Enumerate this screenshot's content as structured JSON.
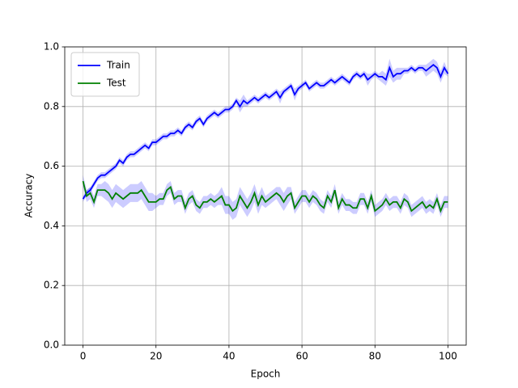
{
  "chart_data": {
    "type": "line",
    "xlabel": "Epoch",
    "ylabel": "Accuracy",
    "x": [
      0,
      1,
      2,
      3,
      4,
      5,
      6,
      7,
      8,
      9,
      10,
      11,
      12,
      13,
      14,
      15,
      16,
      17,
      18,
      19,
      20,
      21,
      22,
      23,
      24,
      25,
      26,
      27,
      28,
      29,
      30,
      31,
      32,
      33,
      34,
      35,
      36,
      37,
      38,
      39,
      40,
      41,
      42,
      43,
      44,
      45,
      46,
      47,
      48,
      49,
      50,
      51,
      52,
      53,
      54,
      55,
      56,
      57,
      58,
      59,
      60,
      61,
      62,
      63,
      64,
      65,
      66,
      67,
      68,
      69,
      70,
      71,
      72,
      73,
      74,
      75,
      76,
      77,
      78,
      79,
      80,
      81,
      82,
      83,
      84,
      85,
      86,
      87,
      88,
      89,
      90,
      91,
      92,
      93,
      94,
      95,
      96,
      97,
      98,
      99,
      100
    ],
    "series": [
      {
        "name": "Train",
        "color": "#0000ff",
        "values": [
          0.49,
          0.51,
          0.52,
          0.54,
          0.56,
          0.57,
          0.57,
          0.58,
          0.59,
          0.6,
          0.62,
          0.61,
          0.63,
          0.64,
          0.64,
          0.65,
          0.66,
          0.67,
          0.66,
          0.68,
          0.68,
          0.69,
          0.7,
          0.7,
          0.71,
          0.71,
          0.72,
          0.71,
          0.73,
          0.74,
          0.73,
          0.75,
          0.76,
          0.74,
          0.76,
          0.77,
          0.78,
          0.77,
          0.78,
          0.79,
          0.79,
          0.8,
          0.82,
          0.8,
          0.82,
          0.81,
          0.82,
          0.83,
          0.82,
          0.83,
          0.84,
          0.83,
          0.84,
          0.85,
          0.83,
          0.85,
          0.86,
          0.87,
          0.84,
          0.86,
          0.87,
          0.88,
          0.86,
          0.87,
          0.88,
          0.87,
          0.87,
          0.88,
          0.89,
          0.88,
          0.89,
          0.9,
          0.89,
          0.88,
          0.9,
          0.91,
          0.9,
          0.91,
          0.89,
          0.9,
          0.91,
          0.9,
          0.9,
          0.89,
          0.93,
          0.9,
          0.91,
          0.91,
          0.92,
          0.92,
          0.93,
          0.92,
          0.93,
          0.93,
          0.92,
          0.93,
          0.94,
          0.93,
          0.9,
          0.93,
          0.91
        ],
        "errors": [
          0.01,
          0.01,
          0.01,
          0.01,
          0.01,
          0.01,
          0.01,
          0.01,
          0.01,
          0.01,
          0.01,
          0.01,
          0.01,
          0.01,
          0.01,
          0.01,
          0.01,
          0.01,
          0.01,
          0.01,
          0.01,
          0.01,
          0.01,
          0.01,
          0.01,
          0.01,
          0.01,
          0.01,
          0.01,
          0.01,
          0.01,
          0.01,
          0.01,
          0.01,
          0.01,
          0.01,
          0.01,
          0.01,
          0.01,
          0.01,
          0.01,
          0.01,
          0.01,
          0.02,
          0.02,
          0.01,
          0.01,
          0.01,
          0.01,
          0.01,
          0.01,
          0.01,
          0.01,
          0.01,
          0.02,
          0.01,
          0.01,
          0.01,
          0.02,
          0.01,
          0.01,
          0.01,
          0.01,
          0.01,
          0.01,
          0.01,
          0.01,
          0.01,
          0.01,
          0.01,
          0.01,
          0.01,
          0.01,
          0.01,
          0.01,
          0.01,
          0.01,
          0.01,
          0.02,
          0.01,
          0.01,
          0.01,
          0.02,
          0.02,
          0.03,
          0.02,
          0.02,
          0.02,
          0.01,
          0.01,
          0.01,
          0.01,
          0.01,
          0.01,
          0.02,
          0.02,
          0.02,
          0.02,
          0.02,
          0.02,
          0.01
        ]
      },
      {
        "name": "Test",
        "color": "#008000",
        "values": [
          0.55,
          0.5,
          0.51,
          0.48,
          0.52,
          0.52,
          0.52,
          0.51,
          0.49,
          0.51,
          0.5,
          0.49,
          0.5,
          0.51,
          0.51,
          0.51,
          0.52,
          0.5,
          0.48,
          0.48,
          0.48,
          0.49,
          0.49,
          0.52,
          0.53,
          0.49,
          0.5,
          0.5,
          0.46,
          0.49,
          0.5,
          0.47,
          0.46,
          0.48,
          0.48,
          0.49,
          0.48,
          0.49,
          0.5,
          0.47,
          0.47,
          0.45,
          0.46,
          0.5,
          0.48,
          0.46,
          0.48,
          0.51,
          0.47,
          0.5,
          0.48,
          0.49,
          0.5,
          0.51,
          0.5,
          0.48,
          0.5,
          0.51,
          0.46,
          0.48,
          0.5,
          0.5,
          0.48,
          0.5,
          0.49,
          0.47,
          0.46,
          0.5,
          0.48,
          0.52,
          0.46,
          0.49,
          0.47,
          0.47,
          0.46,
          0.46,
          0.49,
          0.49,
          0.46,
          0.5,
          0.45,
          0.46,
          0.47,
          0.49,
          0.47,
          0.48,
          0.48,
          0.46,
          0.49,
          0.48,
          0.45,
          0.46,
          0.47,
          0.48,
          0.46,
          0.47,
          0.46,
          0.49,
          0.45,
          0.48,
          0.48
        ],
        "errors": [
          0.02,
          0.02,
          0.02,
          0.02,
          0.02,
          0.02,
          0.03,
          0.03,
          0.03,
          0.03,
          0.03,
          0.03,
          0.03,
          0.03,
          0.03,
          0.03,
          0.03,
          0.03,
          0.03,
          0.03,
          0.02,
          0.02,
          0.02,
          0.02,
          0.02,
          0.02,
          0.02,
          0.02,
          0.02,
          0.02,
          0.02,
          0.02,
          0.02,
          0.02,
          0.02,
          0.02,
          0.02,
          0.02,
          0.03,
          0.03,
          0.03,
          0.03,
          0.03,
          0.03,
          0.03,
          0.03,
          0.03,
          0.03,
          0.03,
          0.03,
          0.02,
          0.02,
          0.02,
          0.02,
          0.03,
          0.03,
          0.03,
          0.02,
          0.02,
          0.02,
          0.02,
          0.02,
          0.02,
          0.02,
          0.02,
          0.02,
          0.02,
          0.02,
          0.02,
          0.02,
          0.02,
          0.02,
          0.02,
          0.02,
          0.02,
          0.02,
          0.02,
          0.02,
          0.02,
          0.02,
          0.02,
          0.02,
          0.02,
          0.02,
          0.02,
          0.02,
          0.02,
          0.02,
          0.02,
          0.02,
          0.02,
          0.02,
          0.02,
          0.02,
          0.02,
          0.02,
          0.02,
          0.02,
          0.02,
          0.02,
          0.02
        ]
      }
    ],
    "band_color": "#0000ff",
    "xlim": [
      -5,
      105
    ],
    "xticks": [
      0,
      20,
      40,
      60,
      80,
      100
    ],
    "ylim": [
      0,
      1
    ],
    "yticks": [
      {
        "value": 0,
        "label": "0.0"
      },
      0.2,
      0.4,
      0.6,
      0.8,
      {
        "value": 1,
        "label": "1.0"
      }
    ],
    "grid": true,
    "legend": "upper left"
  }
}
